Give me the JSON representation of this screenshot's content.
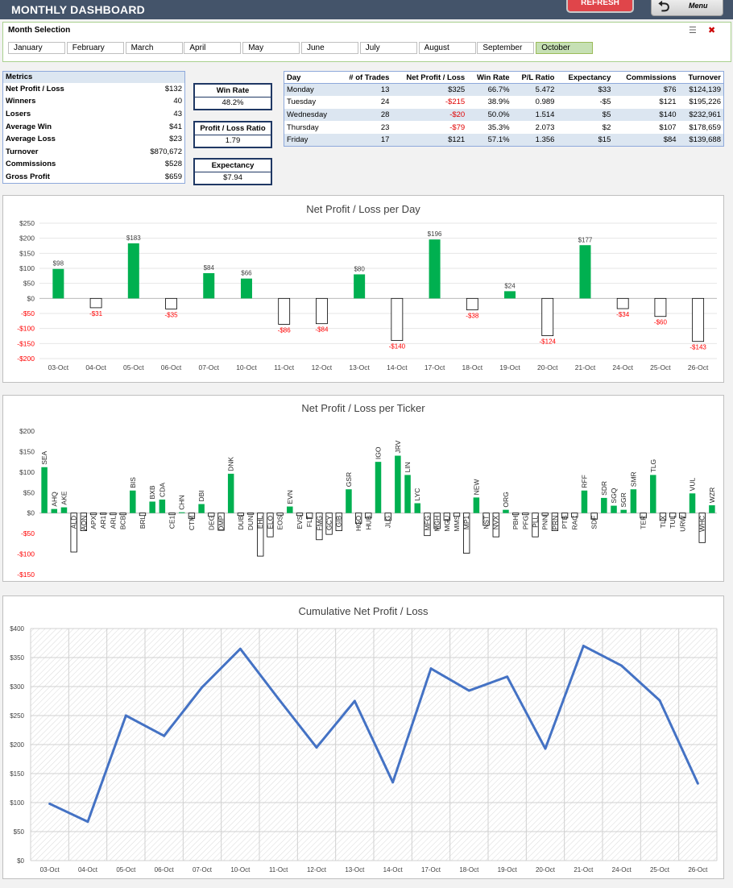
{
  "header": {
    "title": "MONTHLY DASHBOARD",
    "refresh_label": "REFRESH",
    "menu_label": "Menu"
  },
  "month_selection": {
    "label": "Month Selection",
    "months": [
      "January",
      "February",
      "March",
      "April",
      "May",
      "June",
      "July",
      "August",
      "September",
      "October"
    ],
    "selected": "October"
  },
  "metrics": {
    "header": "Metrics",
    "rows": [
      {
        "label": "Net Profit / Loss",
        "value": "$132"
      },
      {
        "label": "Winners",
        "value": "40"
      },
      {
        "label": "Losers",
        "value": "43"
      },
      {
        "label": "Average Win",
        "value": "$41"
      },
      {
        "label": "Average Loss",
        "value": "$23"
      },
      {
        "label": "Turnover",
        "value": "$870,672"
      },
      {
        "label": "Commissions",
        "value": "$528"
      },
      {
        "label": "Gross Profit",
        "value": "$659"
      }
    ]
  },
  "kpis": {
    "win_rate": {
      "label": "Win Rate",
      "value": "48.2%"
    },
    "pl_ratio": {
      "label": "Profit / Loss Ratio",
      "value": "1.79"
    },
    "expectancy": {
      "label": "Expectancy",
      "value": "$7.94"
    }
  },
  "day_table": {
    "columns": [
      "Day",
      "# of Trades",
      "Net Profit / Loss",
      "Win Rate",
      "P/L Ratio",
      "Expectancy",
      "Commissions",
      "Turnover"
    ],
    "rows": [
      [
        "Monday",
        "13",
        "$325",
        "66.7%",
        "5.472",
        "$33",
        "$76",
        "$124,139"
      ],
      [
        "Tuesday",
        "24",
        "-$215",
        "38.9%",
        "0.989",
        "-$5",
        "$121",
        "$195,226"
      ],
      [
        "Wednesday",
        "28",
        "-$20",
        "50.0%",
        "1.514",
        "$5",
        "$140",
        "$232,961"
      ],
      [
        "Thursday",
        "23",
        "-$79",
        "35.3%",
        "2.073",
        "$2",
        "$107",
        "$178,659"
      ],
      [
        "Friday",
        "17",
        "$121",
        "57.1%",
        "1.356",
        "$15",
        "$84",
        "$139,688"
      ]
    ]
  },
  "colors": {
    "positive": "#00b050",
    "negative_text": "#ff0000",
    "line": "#4472c4",
    "header_bg": "#44546a"
  },
  "chart_data": [
    {
      "type": "bar",
      "title": "Net Profit / Loss per Day",
      "categories": [
        "03-Oct",
        "04-Oct",
        "05-Oct",
        "06-Oct",
        "07-Oct",
        "10-Oct",
        "11-Oct",
        "12-Oct",
        "13-Oct",
        "14-Oct",
        "17-Oct",
        "18-Oct",
        "19-Oct",
        "20-Oct",
        "21-Oct",
        "24-Oct",
        "25-Oct",
        "26-Oct"
      ],
      "values": [
        98,
        -31,
        183,
        -35,
        84,
        66,
        -86,
        -84,
        80,
        -140,
        196,
        -38,
        24,
        -124,
        177,
        -34,
        -60,
        -143
      ],
      "labels": [
        "$98",
        "-$31",
        "$183",
        "-$35",
        "$84",
        "$66",
        "-$86",
        "-$84",
        "$80",
        "-$140",
        "$196",
        "-$38",
        "$24",
        "-$124",
        "$177",
        "-$34",
        "-$60",
        "-$143"
      ],
      "ylim": [
        -200,
        250
      ],
      "yticks": [
        250,
        200,
        150,
        100,
        50,
        0,
        -50,
        -100,
        -150,
        -200
      ],
      "ytick_labels": [
        "$250",
        "$200",
        "$150",
        "$100",
        "$50",
        "$0",
        "-$50",
        "-$100",
        "-$150",
        "-$200"
      ],
      "grid": true
    },
    {
      "type": "bar",
      "title": "Net Profit / Loss per Ticker",
      "categories": [
        "SEA",
        "AHQ",
        "AKE",
        "ALD",
        "AON",
        "APX",
        "AR1",
        "ARL",
        "BCB",
        "BIS",
        "BRL",
        "BXB",
        "CDA",
        "CE1",
        "CHN",
        "CTM",
        "DBI",
        "DEG",
        "DMP",
        "DNK",
        "DUB",
        "DUN",
        "EHL",
        "ELO",
        "EOS",
        "EVN",
        "EVS",
        "FLT",
        "FMG",
        "GCY",
        "GIB",
        "GSR",
        "HGO",
        "HUB",
        "IGO",
        "JLG",
        "JRV",
        "LIN",
        "LYC",
        "MFG",
        "MGH",
        "MGU",
        "MMS",
        "MP1",
        "NEW",
        "NST",
        "NVX",
        "ORG",
        "PBH",
        "PFG",
        "PLL",
        "PNN",
        "PRN",
        "PTB",
        "RAC",
        "RFF",
        "SDF",
        "SDR",
        "SGQ",
        "SGR",
        "SMR",
        "TER",
        "TLG",
        "TLX",
        "TUL",
        "URW",
        "VUL",
        "WHC",
        "WZR"
      ],
      "values": [
        112,
        10,
        14,
        -95,
        -43,
        -4,
        -3,
        -4,
        -4,
        55,
        -6,
        28,
        33,
        -4,
        2,
        -13,
        22,
        -8,
        -42,
        96,
        -6,
        -3,
        -105,
        -58,
        -5,
        16,
        -6,
        -13,
        -65,
        -52,
        -43,
        58,
        -25,
        -12,
        125,
        -18,
        140,
        93,
        24,
        -55,
        -38,
        -18,
        -8,
        -98,
        38,
        -30,
        -58,
        8,
        -4,
        -4,
        -58,
        -5,
        -43,
        -12,
        -10,
        55,
        -15,
        37,
        18,
        8,
        58,
        -12,
        93,
        -18,
        -10,
        -12,
        48,
        -72,
        19
      ],
      "ylim": [
        -150,
        200
      ],
      "yticks": [
        200,
        150,
        100,
        50,
        0,
        -50,
        -100,
        -150
      ],
      "ytick_labels": [
        "$200",
        "$150",
        "$100",
        "$50",
        "$0",
        "-$50",
        "-$100",
        "-$150"
      ],
      "grid": false
    },
    {
      "type": "line",
      "title": "Cumulative Net Profit / Loss",
      "x": [
        "03-Oct",
        "04-Oct",
        "05-Oct",
        "06-Oct",
        "07-Oct",
        "10-Oct",
        "11-Oct",
        "12-Oct",
        "13-Oct",
        "14-Oct",
        "17-Oct",
        "18-Oct",
        "19-Oct",
        "20-Oct",
        "21-Oct",
        "24-Oct",
        "25-Oct",
        "26-Oct"
      ],
      "values": [
        98,
        67,
        250,
        215,
        299,
        365,
        279,
        195,
        275,
        135,
        331,
        293,
        317,
        193,
        370,
        336,
        276,
        133
      ],
      "ylim": [
        0,
        400
      ],
      "yticks": [
        400,
        350,
        300,
        250,
        200,
        150,
        100,
        50,
        0
      ],
      "ytick_labels": [
        "$400",
        "$350",
        "$300",
        "$250",
        "$200",
        "$150",
        "$100",
        "$50",
        "$0"
      ],
      "grid": true
    }
  ]
}
